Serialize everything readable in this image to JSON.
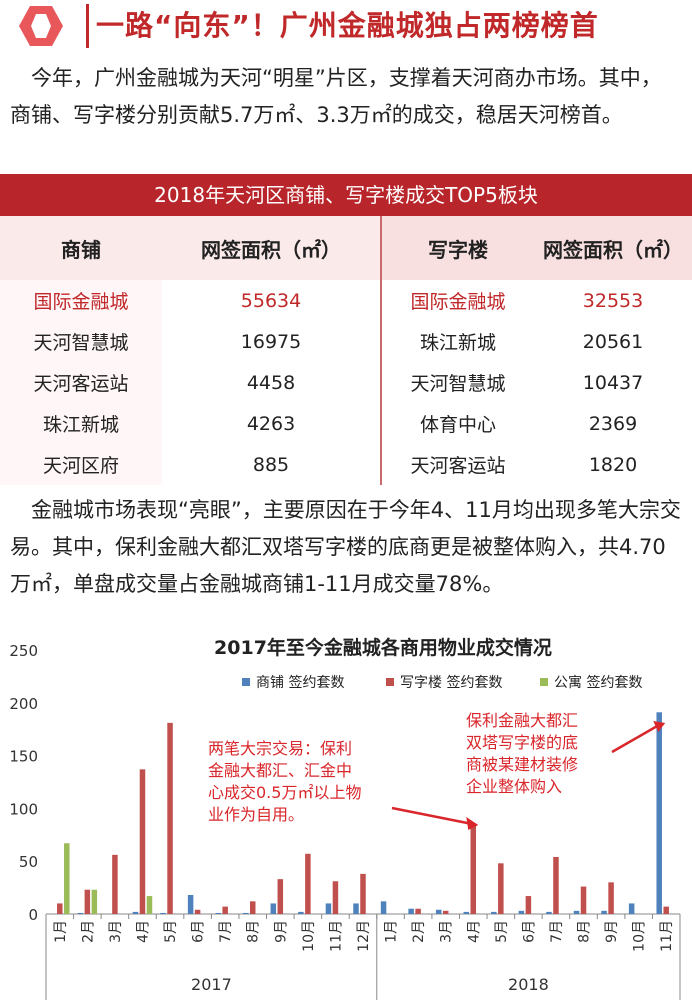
{
  "header": {
    "title": "一路“向东”！广州金融城独占两榜榜首"
  },
  "intro": {
    "text": "今年，广州金融城为天河“明星”片区，支撑着天河商办市场。其中，商铺、写字楼分别贡献5.7万㎡、3.3万㎡的成交，稳居天河榜首。"
  },
  "table": {
    "title": "2018年天河区商铺、写字楼成交TOP5板块",
    "headers": [
      "商铺",
      "网签面积（㎡）",
      "写字楼",
      "网签面积（㎡）"
    ],
    "rows": [
      [
        "国际金融城",
        "55634",
        "国际金融城",
        "32553"
      ],
      [
        "天河智慧城",
        "16975",
        "珠江新城",
        "20561"
      ],
      [
        "天河客运站",
        "4458",
        "天河智慧城",
        "10437"
      ],
      [
        "珠江新城",
        "4263",
        "体育中心",
        "2369"
      ],
      [
        "天河区府",
        "885",
        "天河客运站",
        "1820"
      ]
    ]
  },
  "body": {
    "text": "金融城市场表现“亮眼”，主要原因在于今年4、11月均出现多笔大宗交易。其中，保利金融大都汇双塔写字楼的底商更是被整体购入，共4.70万㎡，单盘成交量占金融城商铺1-11月成交量78%。"
  },
  "chart_data": {
    "type": "bar",
    "title": "2017年至今金融城各商用物业成交情况",
    "categories": [
      "1月",
      "2月",
      "3月",
      "4月",
      "5月",
      "6月",
      "7月",
      "8月",
      "9月",
      "10月",
      "11月",
      "12月",
      "1月",
      "2月",
      "3月",
      "4月",
      "5月",
      "6月",
      "7月",
      "8月",
      "9月",
      "10月",
      "11月"
    ],
    "year_groups": [
      {
        "label": "2017",
        "count": 12
      },
      {
        "label": "2018",
        "count": 11
      }
    ],
    "ylim": [
      0,
      250
    ],
    "yticks": [
      0,
      50,
      100,
      150,
      200,
      250
    ],
    "series": [
      {
        "name": "商铺 签约套数",
        "color": "#4f81bd",
        "values": [
          0,
          1,
          0,
          2,
          1,
          18,
          1,
          1,
          10,
          2,
          10,
          10,
          12,
          5,
          4,
          2,
          2,
          3,
          2,
          3,
          3,
          10,
          191
        ]
      },
      {
        "name": "写字楼 签约套数",
        "color": "#c0504d",
        "values": [
          10,
          23,
          56,
          137,
          181,
          4,
          7,
          12,
          33,
          57,
          31,
          38,
          0,
          5,
          3,
          86,
          48,
          17,
          54,
          26,
          30,
          0,
          7
        ]
      },
      {
        "name": "公寓 签约套数",
        "color": "#9bbb59",
        "values": [
          67,
          23,
          0,
          17,
          0,
          0,
          0,
          0,
          0,
          0,
          0,
          0,
          0,
          0,
          0,
          0,
          0,
          0,
          0,
          0,
          0,
          0,
          0
        ]
      }
    ],
    "annotations": [
      {
        "text": "两笔大宗交易：保利金融大都汇、汇金中心成交0.5万㎡以上物业作为自用。",
        "lines": [
          "两笔大宗交易：保利",
          "金融大都汇、汇金中",
          "心成交0.5万㎡以上物",
          "业作为自用。"
        ],
        "target_index": 15
      },
      {
        "text": "保利金融大都汇双塔写字楼的底商被某建材装修企业整体购入",
        "lines": [
          "保利金融大都汇",
          "双塔写字楼的底",
          "商被某建材装修",
          "企业整体购入"
        ],
        "target_index": 22
      }
    ],
    "annotation_color": "#d9262b",
    "grid": false,
    "legend_position": "top-right"
  }
}
